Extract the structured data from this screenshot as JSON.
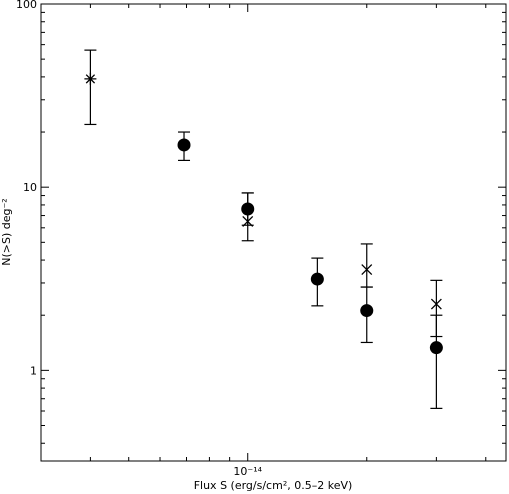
{
  "chart_data": {
    "type": "scatter",
    "title": "",
    "xlabel": "Flux S (erg/s/cm², 0.5–2 keV)",
    "ylabel": "N(>S) deg⁻²",
    "xscale": "log",
    "yscale": "log",
    "xlim": [
      3e-15,
      4.5e-14
    ],
    "ylim": [
      0.32,
      100
    ],
    "grid": false,
    "x_ticks": [
      {
        "value": 1e-14,
        "label": "10⁻¹⁴"
      }
    ],
    "y_ticks": [
      {
        "value": 1,
        "label": "1"
      },
      {
        "value": 10,
        "label": "10"
      },
      {
        "value": 100,
        "label": "100"
      }
    ],
    "series": [
      {
        "marker": "asterisk",
        "points": [
          {
            "x": 4e-15,
            "y": 39,
            "ylo": 22,
            "yhi": 56
          }
        ]
      },
      {
        "marker": "filled-circle",
        "points": [
          {
            "x": 6.9e-15,
            "y": 17,
            "ylo": 14,
            "yhi": 20
          },
          {
            "x": 1e-14,
            "y": 7.6,
            "ylo": 6.2,
            "yhi": 9.3
          },
          {
            "x": 1.5e-14,
            "y": 3.15,
            "ylo": 2.25,
            "yhi": 4.1
          },
          {
            "x": 2e-14,
            "y": 2.12,
            "ylo": 1.42,
            "yhi": 2.85
          },
          {
            "x": 3e-14,
            "y": 1.33,
            "ylo": 0.62,
            "yhi": 2.0
          }
        ]
      },
      {
        "marker": "cross",
        "points": [
          {
            "x": 1e-14,
            "y": 6.5,
            "ylo": 5.1,
            "yhi": 9.3
          },
          {
            "x": 2e-14,
            "y": 3.55,
            "ylo": 2.85,
            "yhi": 4.9
          },
          {
            "x": 3e-14,
            "y": 2.3,
            "ylo": 1.53,
            "yhi": 3.1
          }
        ]
      }
    ]
  }
}
